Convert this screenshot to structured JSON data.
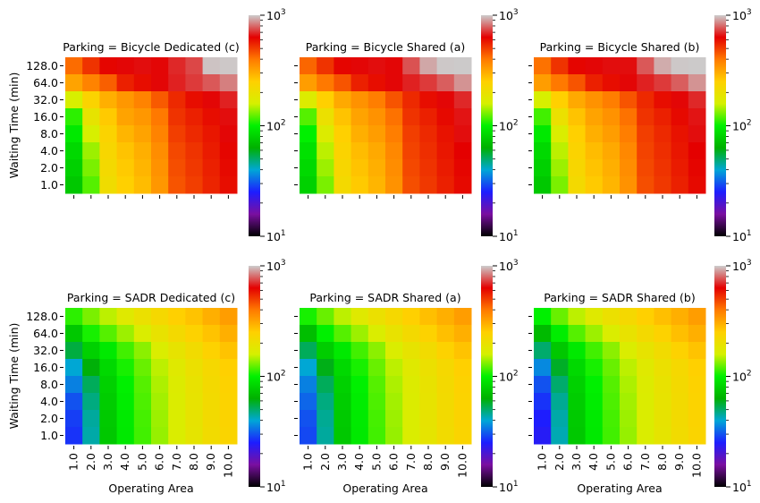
{
  "colormap_stops": [
    "#000000",
    "#7a0fa0",
    "#1d1dff",
    "#00a7d6",
    "#00b000",
    "#00f000",
    "#d6f000",
    "#ffd000",
    "#ff7a00",
    "#e40000",
    "#cccccc"
  ],
  "colorbar": {
    "ticks": [
      {
        "base": "10",
        "exp": "3"
      },
      {
        "base": "10",
        "exp": "2"
      },
      {
        "base": "10",
        "exp": "1"
      }
    ]
  },
  "chart_data": [
    {
      "type": "heatmap",
      "title": "Parking = Bicycle Dedicated (c)",
      "ylabel": "Waiting Time (min)",
      "xlabel": "",
      "x_categories": [
        "1.0",
        "2.0",
        "3.0",
        "4.0",
        "5.0",
        "6.0",
        "7.0",
        "8.0",
        "9.0",
        "10.0"
      ],
      "y_categories": [
        "128.0",
        "64.0",
        "32.0",
        "16.0",
        "8.0",
        "4.0",
        "2.0",
        "1.0"
      ],
      "color_scale": "log",
      "clim": [
        10,
        1000
      ],
      "values": [
        [
          420,
          520,
          620,
          640,
          650,
          640,
          690,
          740,
          980,
          990
        ],
        [
          320,
          380,
          440,
          560,
          600,
          640,
          680,
          720,
          770,
          840
        ],
        [
          160,
          240,
          300,
          340,
          380,
          450,
          540,
          600,
          640,
          680
        ],
        [
          110,
          190,
          260,
          320,
          340,
          400,
          520,
          560,
          600,
          650
        ],
        [
          95,
          160,
          240,
          290,
          320,
          380,
          500,
          540,
          580,
          640
        ],
        [
          85,
          140,
          230,
          270,
          300,
          360,
          480,
          520,
          570,
          620
        ],
        [
          80,
          130,
          220,
          260,
          290,
          350,
          470,
          510,
          560,
          610
        ],
        [
          75,
          120,
          210,
          250,
          280,
          340,
          460,
          500,
          550,
          600
        ]
      ]
    },
    {
      "type": "heatmap",
      "title": "Parking = Bicycle Shared (a)",
      "ylabel": "",
      "xlabel": "",
      "x_categories": [
        "1.0",
        "2.0",
        "3.0",
        "4.0",
        "5.0",
        "6.0",
        "7.0",
        "8.0",
        "9.0",
        "10.0"
      ],
      "y_categories": [
        "128.0",
        "64.0",
        "32.0",
        "16.0",
        "8.0",
        "4.0",
        "2.0",
        "1.0"
      ],
      "color_scale": "log",
      "clim": [
        10,
        1000
      ],
      "values": [
        [
          430,
          520,
          620,
          640,
          650,
          640,
          760,
          920,
          990,
          995
        ],
        [
          330,
          400,
          460,
          560,
          600,
          640,
          680,
          720,
          780,
          880
        ],
        [
          170,
          250,
          310,
          350,
          390,
          460,
          540,
          600,
          640,
          690
        ],
        [
          120,
          200,
          270,
          320,
          350,
          410,
          520,
          560,
          610,
          660
        ],
        [
          100,
          170,
          250,
          300,
          330,
          390,
          500,
          540,
          590,
          650
        ],
        [
          90,
          150,
          240,
          280,
          310,
          370,
          490,
          530,
          580,
          630
        ],
        [
          85,
          140,
          230,
          270,
          300,
          360,
          480,
          520,
          570,
          620
        ],
        [
          80,
          130,
          220,
          260,
          290,
          350,
          470,
          510,
          560,
          610
        ]
      ]
    },
    {
      "type": "heatmap",
      "title": "Parking = Bicycle Shared (b)",
      "ylabel": "",
      "xlabel": "",
      "x_categories": [
        "1.0",
        "2.0",
        "3.0",
        "4.0",
        "5.0",
        "6.0",
        "7.0",
        "8.0",
        "9.0",
        "10.0"
      ],
      "y_categories": [
        "128.0",
        "64.0",
        "32.0",
        "16.0",
        "8.0",
        "4.0",
        "2.0",
        "1.0"
      ],
      "color_scale": "log",
      "clim": [
        10,
        1000
      ],
      "values": [
        [
          410,
          520,
          620,
          640,
          650,
          650,
          770,
          930,
          990,
          995
        ],
        [
          330,
          400,
          460,
          560,
          600,
          640,
          680,
          720,
          780,
          880
        ],
        [
          160,
          250,
          310,
          350,
          390,
          460,
          540,
          600,
          640,
          690
        ],
        [
          115,
          200,
          270,
          320,
          350,
          410,
          520,
          560,
          610,
          660
        ],
        [
          95,
          165,
          250,
          300,
          330,
          390,
          500,
          540,
          590,
          650
        ],
        [
          85,
          150,
          240,
          280,
          310,
          370,
          490,
          530,
          580,
          630
        ],
        [
          80,
          140,
          230,
          270,
          300,
          360,
          480,
          520,
          570,
          620
        ],
        [
          75,
          130,
          220,
          260,
          290,
          350,
          470,
          510,
          560,
          610
        ]
      ]
    },
    {
      "type": "heatmap",
      "title": "Parking = SADR Dedicated (c)",
      "ylabel": "Waiting Time (min)",
      "xlabel": "Operating Area",
      "x_categories": [
        "1.0",
        "2.0",
        "3.0",
        "4.0",
        "5.0",
        "6.0",
        "7.0",
        "8.0",
        "9.0",
        "10.0"
      ],
      "y_categories": [
        "128.0",
        "64.0",
        "32.0",
        "16.0",
        "8.0",
        "4.0",
        "2.0",
        "1.0"
      ],
      "color_scale": "log",
      "clim": [
        10,
        1000
      ],
      "values": [
        [
          110,
          130,
          150,
          175,
          200,
          225,
          250,
          270,
          300,
          330
        ],
        [
          75,
          105,
          120,
          140,
          165,
          195,
          220,
          245,
          270,
          300
        ],
        [
          55,
          80,
          95,
          115,
          135,
          165,
          190,
          215,
          245,
          270
        ],
        [
          40,
          62,
          85,
          105,
          125,
          150,
          175,
          200,
          225,
          250
        ],
        [
          35,
          52,
          80,
          100,
          120,
          145,
          170,
          195,
          220,
          245
        ],
        [
          30,
          48,
          78,
          98,
          118,
          142,
          168,
          192,
          218,
          242
        ],
        [
          28,
          45,
          76,
          96,
          116,
          140,
          166,
          190,
          216,
          240
        ],
        [
          27,
          44,
          75,
          95,
          115,
          138,
          165,
          188,
          214,
          238
        ]
      ]
    },
    {
      "type": "heatmap",
      "title": "Parking = SADR Shared (a)",
      "ylabel": "",
      "xlabel": "Operating Area",
      "x_categories": [
        "1.0",
        "2.0",
        "3.0",
        "4.0",
        "5.0",
        "6.0",
        "7.0",
        "8.0",
        "9.0",
        "10.0"
      ],
      "y_categories": [
        "128.0",
        "64.0",
        "32.0",
        "16.0",
        "8.0",
        "4.0",
        "2.0",
        "1.0"
      ],
      "color_scale": "log",
      "clim": [
        10,
        1000
      ],
      "values": [
        [
          105,
          125,
          150,
          175,
          200,
          225,
          250,
          275,
          300,
          330
        ],
        [
          70,
          100,
          120,
          140,
          165,
          195,
          220,
          245,
          275,
          300
        ],
        [
          52,
          78,
          95,
          115,
          135,
          165,
          190,
          215,
          245,
          270
        ],
        [
          40,
          60,
          85,
          105,
          125,
          150,
          175,
          200,
          225,
          250
        ],
        [
          35,
          52,
          80,
          100,
          120,
          145,
          170,
          195,
          220,
          245
        ],
        [
          32,
          48,
          78,
          98,
          118,
          142,
          168,
          192,
          218,
          242
        ],
        [
          30,
          46,
          76,
          96,
          116,
          140,
          166,
          190,
          216,
          240
        ],
        [
          29,
          45,
          75,
          95,
          115,
          138,
          165,
          188,
          214,
          238
        ]
      ]
    },
    {
      "type": "heatmap",
      "title": "Parking = SADR Shared (b)",
      "ylabel": "",
      "xlabel": "Operating Area",
      "x_categories": [
        "1.0",
        "2.0",
        "3.0",
        "4.0",
        "5.0",
        "6.0",
        "7.0",
        "8.0",
        "9.0",
        "10.0"
      ],
      "y_categories": [
        "128.0",
        "64.0",
        "32.0",
        "16.0",
        "8.0",
        "4.0",
        "2.0",
        "1.0"
      ],
      "color_scale": "log",
      "clim": [
        10,
        1000
      ],
      "values": [
        [
          100,
          125,
          150,
          175,
          200,
          225,
          250,
          275,
          300,
          330
        ],
        [
          68,
          98,
          120,
          140,
          165,
          195,
          220,
          245,
          275,
          300
        ],
        [
          50,
          75,
          95,
          115,
          135,
          165,
          190,
          215,
          245,
          270
        ],
        [
          36,
          58,
          85,
          105,
          125,
          150,
          175,
          200,
          225,
          250
        ],
        [
          30,
          50,
          80,
          100,
          120,
          145,
          170,
          195,
          220,
          245
        ],
        [
          27,
          46,
          78,
          98,
          118,
          142,
          168,
          192,
          218,
          242
        ],
        [
          25,
          44,
          76,
          96,
          116,
          140,
          166,
          190,
          216,
          240
        ],
        [
          24,
          43,
          75,
          95,
          115,
          138,
          165,
          188,
          214,
          238
        ]
      ]
    }
  ]
}
